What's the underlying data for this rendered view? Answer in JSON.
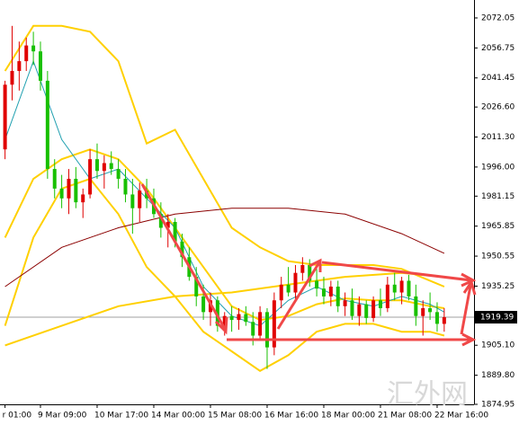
{
  "chart_data": {
    "type": "candlestick",
    "categories": [
      "r 01:00",
      null,
      null,
      null,
      null,
      "9 Mar 09:00",
      null,
      null,
      null,
      null,
      null,
      null,
      null,
      "10 Mar 17:00",
      null,
      null,
      null,
      null,
      null,
      null,
      null,
      "14 Mar 00:00",
      null,
      null,
      null,
      null,
      null,
      null,
      null,
      "15 Mar 08:00",
      null,
      null,
      null,
      null,
      null,
      null,
      null,
      "16 Mar 16:00",
      null,
      null,
      null,
      null,
      null,
      null,
      null,
      "18 Mar 00:00",
      null,
      null,
      null,
      null,
      null,
      null,
      null,
      "21 Mar 08:00",
      null,
      null,
      null,
      null,
      null,
      null,
      null,
      "22 Mar 16:00",
      null
    ],
    "ohlc": [
      [
        2005,
        2040,
        2000,
        2038
      ],
      [
        2038,
        2068,
        2030,
        2045
      ],
      [
        2045,
        2060,
        2035,
        2050
      ],
      [
        2050,
        2062,
        2045,
        2058
      ],
      [
        2058,
        2065,
        2048,
        2055
      ],
      [
        2055,
        2060,
        2035,
        2040
      ],
      [
        2040,
        2045,
        1990,
        1995
      ],
      [
        1995,
        2000,
        1980,
        1985
      ],
      [
        1985,
        1992,
        1975,
        1980
      ],
      [
        1980,
        1995,
        1972,
        1990
      ],
      [
        1990,
        1996,
        1975,
        1978
      ],
      [
        1978,
        1985,
        1970,
        1982
      ],
      [
        1982,
        2005,
        1980,
        2000
      ],
      [
        2000,
        2008,
        1990,
        1994
      ],
      [
        1994,
        2002,
        1985,
        1998
      ],
      [
        1998,
        2004,
        1992,
        1995
      ],
      [
        1995,
        2000,
        1985,
        1990
      ],
      [
        1990,
        1995,
        1978,
        1982
      ],
      [
        1982,
        1990,
        1962,
        1975
      ],
      [
        1975,
        1988,
        1968,
        1984
      ],
      [
        1984,
        1990,
        1975,
        1980
      ],
      [
        1980,
        1985,
        1970,
        1972
      ],
      [
        1972,
        1978,
        1960,
        1965
      ],
      [
        1965,
        1972,
        1955,
        1968
      ],
      [
        1968,
        1970,
        1955,
        1958
      ],
      [
        1958,
        1962,
        1945,
        1950
      ],
      [
        1950,
        1955,
        1938,
        1940
      ],
      [
        1940,
        1945,
        1925,
        1930
      ],
      [
        1930,
        1936,
        1918,
        1922
      ],
      [
        1922,
        1932,
        1915,
        1928
      ],
      [
        1928,
        1930,
        1912,
        1915
      ],
      [
        1915,
        1922,
        1910,
        1920
      ],
      [
        1920,
        1925,
        1912,
        1918
      ],
      [
        1918,
        1924,
        1913,
        1921
      ],
      [
        1921,
        1925,
        1915,
        1917
      ],
      [
        1917,
        1922,
        1905,
        1910
      ],
      [
        1910,
        1925,
        1908,
        1922
      ],
      [
        1922,
        1924,
        1893,
        1904
      ],
      [
        1904,
        1932,
        1900,
        1928
      ],
      [
        1928,
        1940,
        1924,
        1936
      ],
      [
        1936,
        1945,
        1930,
        1932
      ],
      [
        1932,
        1946,
        1928,
        1942
      ],
      [
        1942,
        1950,
        1938,
        1946
      ],
      [
        1946,
        1949,
        1935,
        1938
      ],
      [
        1938,
        1944,
        1930,
        1934
      ],
      [
        1934,
        1940,
        1926,
        1930
      ],
      [
        1930,
        1938,
        1925,
        1935
      ],
      [
        1935,
        1938,
        1922,
        1925
      ],
      [
        1925,
        1932,
        1920,
        1928
      ],
      [
        1928,
        1934,
        1918,
        1920
      ],
      [
        1920,
        1930,
        1915,
        1926
      ],
      [
        1926,
        1928,
        1916,
        1919
      ],
      [
        1919,
        1930,
        1917,
        1928
      ],
      [
        1928,
        1934,
        1920,
        1924
      ],
      [
        1924,
        1940,
        1922,
        1936
      ],
      [
        1936,
        1942,
        1928,
        1932
      ],
      [
        1932,
        1940,
        1926,
        1938
      ],
      [
        1938,
        1941,
        1928,
        1930
      ],
      [
        1930,
        1936,
        1915,
        1920
      ],
      [
        1920,
        1928,
        1910,
        1924
      ],
      [
        1924,
        1932,
        1918,
        1922
      ],
      [
        1922,
        1927,
        1912,
        1916
      ],
      [
        1916,
        1924,
        1912,
        1919.39
      ]
    ],
    "up_color": "#e00000",
    "down_color": "#18c000",
    "overlays": [
      {
        "color": "#ffd000",
        "x": [
          0,
          4,
          8,
          12,
          16,
          20,
          24,
          28,
          32,
          36,
          40,
          44,
          48,
          52,
          56,
          60,
          62
        ],
        "values": [
          2045,
          2068,
          2068,
          2065,
          2050,
          2008,
          2015,
          1990,
          1965,
          1955,
          1948,
          1946,
          1946,
          1946,
          1944,
          1938,
          1935
        ]
      },
      {
        "color": "#ffd000",
        "x": [
          0,
          4,
          8,
          12,
          16,
          20,
          24,
          28,
          32,
          36,
          40,
          44,
          48,
          52,
          56,
          60,
          62
        ],
        "values": [
          1915,
          1960,
          1985,
          1990,
          1972,
          1945,
          1930,
          1912,
          1902,
          1892,
          1900,
          1912,
          1916,
          1916,
          1912,
          1912,
          1910
        ]
      },
      {
        "color": "#ffd000",
        "x": [
          0,
          4,
          8,
          12,
          16,
          20,
          24,
          28,
          32,
          36,
          40,
          44,
          48,
          52,
          56,
          60,
          62
        ],
        "values": [
          1960,
          1990,
          2000,
          2005,
          2000,
          1985,
          1965,
          1945,
          1925,
          1918,
          1920,
          1926,
          1929,
          1928,
          1928,
          1925,
          1924
        ]
      },
      {
        "color": "#ffd000",
        "x": [
          0,
          8,
          16,
          24,
          32,
          40,
          48,
          56,
          62
        ],
        "values": [
          1905,
          1915,
          1925,
          1930,
          1932,
          1936,
          1940,
          1942,
          1940
        ]
      },
      {
        "color": "#8b0000",
        "x": [
          0,
          8,
          16,
          24,
          32,
          40,
          48,
          56,
          62
        ],
        "values": [
          1935,
          1955,
          1965,
          1972,
          1975,
          1975,
          1972,
          1962,
          1952
        ]
      },
      {
        "color": "#20a0b0",
        "x": [
          0,
          4,
          8,
          12,
          16,
          20,
          24,
          28,
          32,
          36,
          40,
          44,
          48,
          52,
          56,
          60,
          62
        ],
        "values": [
          2010,
          2050,
          2010,
          1990,
          1995,
          1980,
          1965,
          1935,
          1920,
          1915,
          1928,
          1935,
          1928,
          1925,
          1930,
          1926,
          1922
        ]
      }
    ],
    "current_price": 1919.39,
    "ylim": [
      1874.95,
      2081.2
    ],
    "yticks": [
      2072.05,
      2056.75,
      2041.45,
      {
        "value": 2026.6,
        "label": "2026.60"
      },
      {
        "value": 2011.3,
        "label": "2011.30"
      },
      {
        "value": 1996,
        "label": "1996.00"
      },
      1981.15,
      1965.85,
      1950.55,
      1935.25,
      {
        "value": 1905.1,
        "label": "1905.10"
      },
      {
        "value": 1889.8,
        "label": "1889.80"
      },
      1874.95
    ],
    "watermark": "汇外网"
  }
}
